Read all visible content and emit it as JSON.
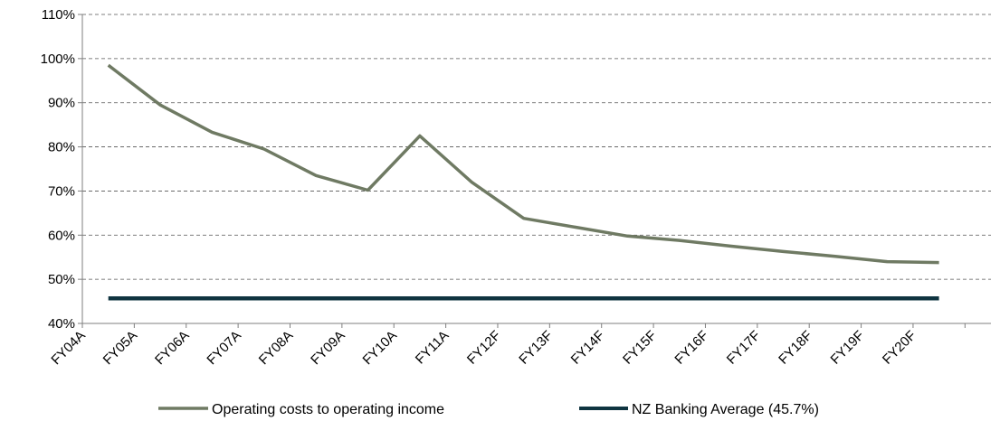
{
  "chart_data": {
    "type": "line",
    "title": "",
    "xlabel": "",
    "ylabel": "",
    "categories": [
      "FY04A",
      "FY05A",
      "FY06A",
      "FY07A",
      "FY08A",
      "FY09A",
      "FY10A",
      "FY11A",
      "FY12F",
      "FY13F",
      "FY14F",
      "FY15F",
      "FY16F",
      "FY17F",
      "FY18F",
      "FY19F",
      "FY20F"
    ],
    "y_ticks": [
      "40%",
      "50%",
      "60%",
      "70%",
      "80%",
      "90%",
      "100%",
      "110%"
    ],
    "ylim": [
      40,
      110
    ],
    "y_unit": "%",
    "grid": "horizontal dashed",
    "legend_position": "bottom",
    "series": [
      {
        "name": "Operating costs to operating income",
        "color": "#6f7a63",
        "values": [
          98.5,
          89.5,
          83.3,
          79.5,
          73.5,
          70.2,
          82.5,
          72.0,
          63.8,
          61.8,
          59.8,
          58.8,
          57.5,
          56.3,
          55.2,
          54.0,
          53.8
        ]
      },
      {
        "name": "NZ Banking Average (45.7%)",
        "color": "#0f3440",
        "values": [
          45.7,
          45.7,
          45.7,
          45.7,
          45.7,
          45.7,
          45.7,
          45.7,
          45.7,
          45.7,
          45.7,
          45.7,
          45.7,
          45.7,
          45.7,
          45.7,
          45.7
        ]
      }
    ]
  }
}
